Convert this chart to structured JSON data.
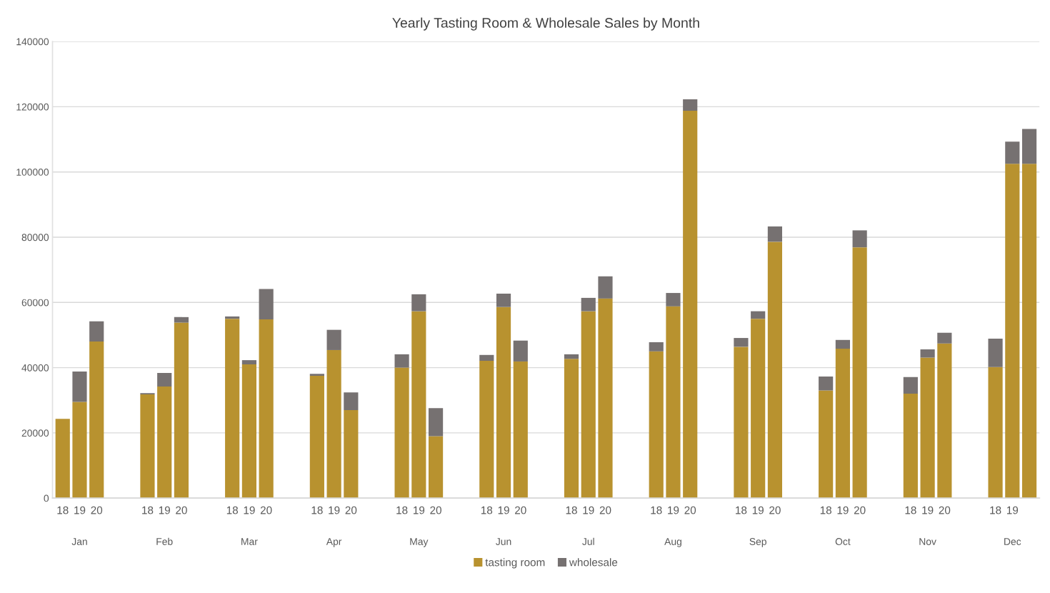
{
  "chart_data": {
    "type": "bar",
    "title": "Yearly Tasting Room & Wholesale Sales by Month",
    "stacked": true,
    "categories": [
      "18",
      "19",
      "20",
      null,
      null,
      "18",
      "19",
      "20",
      null,
      null,
      "18",
      "19",
      "20",
      null,
      null,
      "18",
      "19",
      "20",
      null,
      null,
      "18",
      "19",
      "20",
      null,
      null,
      "18",
      "19",
      "20",
      null,
      null,
      "18",
      "19",
      "20",
      null,
      null,
      "18",
      "19",
      "20",
      null,
      null,
      "18",
      "19",
      "20",
      null,
      null,
      "18",
      "19",
      "20",
      null,
      null,
      "18",
      "19",
      "20",
      null,
      null,
      "18",
      "19",
      null
    ],
    "series": [
      {
        "name": "tasting room",
        "color": "#b8922f",
        "values": [
          24300,
          29500,
          48000,
          null,
          null,
          31800,
          34200,
          53800,
          null,
          null,
          55000,
          41000,
          54800,
          null,
          null,
          37500,
          45400,
          27000,
          null,
          null,
          40000,
          57300,
          19000,
          null,
          null,
          42100,
          58600,
          41900,
          null,
          null,
          42700,
          57300,
          61200,
          null,
          null,
          45000,
          58800,
          118800,
          null,
          null,
          46400,
          55000,
          78600,
          null,
          null,
          33000,
          45800,
          76900,
          null,
          null,
          32000,
          43100,
          47400,
          null,
          null,
          40200,
          102500,
          102500
        ]
      },
      {
        "name": "wholesale",
        "color": "#767171",
        "values": [
          0,
          9300,
          6200,
          null,
          null,
          400,
          4200,
          1700,
          null,
          null,
          700,
          1300,
          9300,
          null,
          null,
          600,
          6200,
          5400,
          null,
          null,
          4100,
          5200,
          8600,
          null,
          null,
          1800,
          4100,
          6400,
          null,
          null,
          1400,
          4100,
          6800,
          null,
          null,
          2800,
          4100,
          3500,
          null,
          null,
          2700,
          2300,
          4700,
          null,
          null,
          4300,
          2700,
          5200,
          null,
          null,
          5100,
          2500,
          3300,
          null,
          null,
          8700,
          6800,
          10700
        ]
      }
    ],
    "annotations": [
      "Jan",
      "Feb",
      "Mar",
      "Apr",
      "May",
      "Jun",
      "Jul",
      "Aug",
      "Sep",
      "Oct",
      "Nov",
      "Dec"
    ],
    "ylim": [
      0,
      140000
    ],
    "yticks": [
      0,
      20000,
      40000,
      60000,
      80000,
      100000,
      120000,
      140000
    ],
    "grid": "y",
    "legend": "bottom"
  }
}
